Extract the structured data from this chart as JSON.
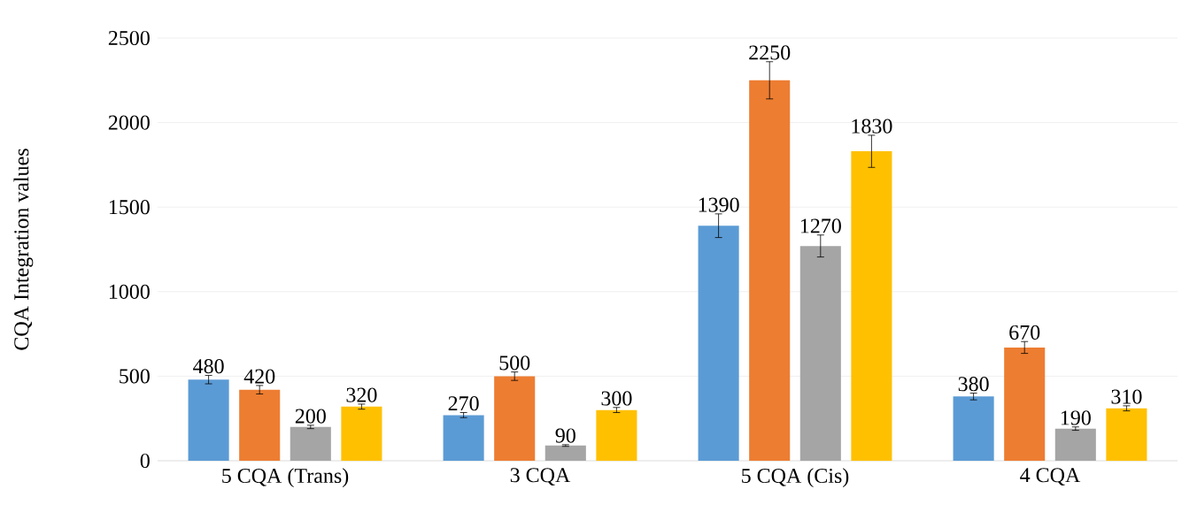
{
  "chart_data": {
    "type": "bar",
    "ylabel": "CQA Integration values",
    "categories": [
      "5 CQA (Trans)",
      "3 CQA",
      "5 CQA (Cis)",
      "4 CQA"
    ],
    "series": [
      {
        "color": "#5b9bd5",
        "values": [
          480,
          270,
          1390,
          380
        ],
        "errors": [
          25,
          15,
          70,
          20
        ],
        "value_labels": [
          "480",
          "270",
          "1390",
          "380"
        ]
      },
      {
        "color": "#ed7d31",
        "values": [
          420,
          500,
          2250,
          670
        ],
        "errors": [
          25,
          25,
          110,
          35
        ],
        "value_labels": [
          "420",
          "500",
          "2250",
          "670"
        ]
      },
      {
        "color": "#a5a5a5",
        "values": [
          200,
          90,
          1270,
          190
        ],
        "errors": [
          10,
          5,
          65,
          10
        ],
        "value_labels": [
          "200",
          "90",
          "1270",
          "190"
        ]
      },
      {
        "color": "#ffc000",
        "values": [
          320,
          300,
          1830,
          310
        ],
        "errors": [
          15,
          15,
          95,
          15
        ],
        "value_labels": [
          "320",
          "300",
          "1830",
          "310"
        ]
      }
    ],
    "ylim": [
      0,
      2500
    ],
    "yticks": [
      0,
      500,
      1000,
      1500,
      2000,
      2500
    ],
    "grid": "y"
  }
}
